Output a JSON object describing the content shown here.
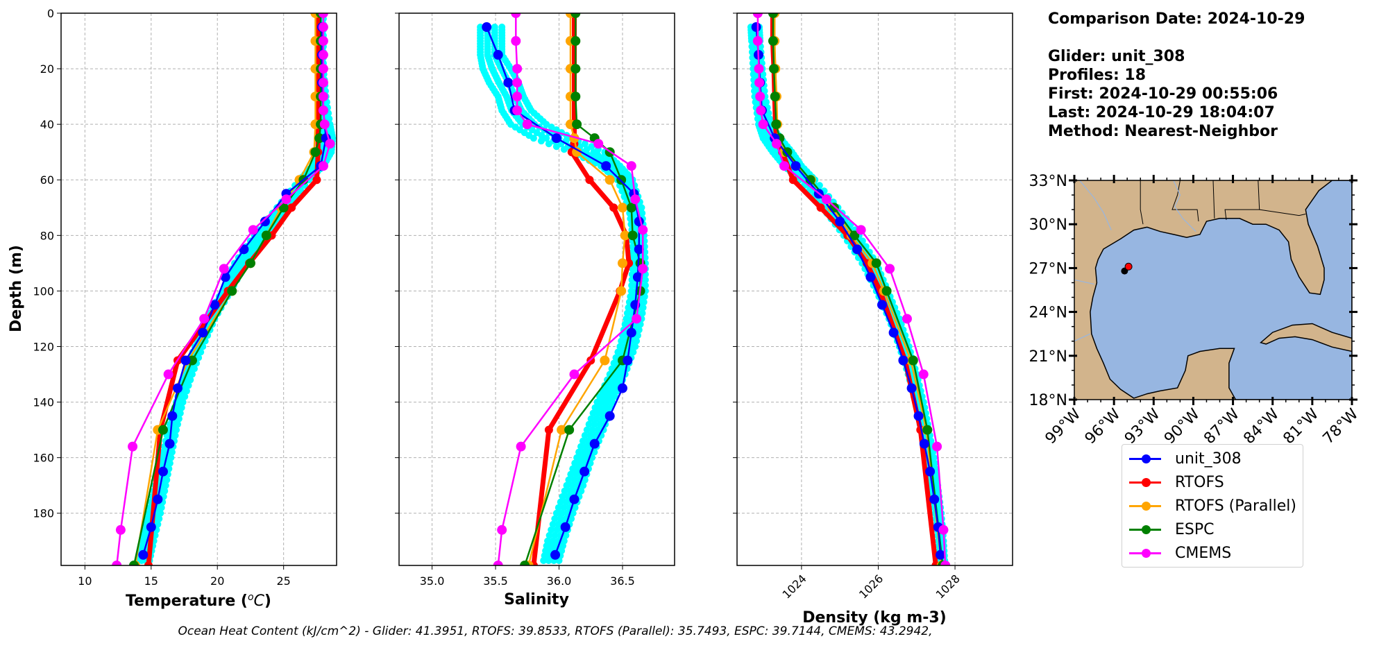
{
  "info": {
    "comparison_date": "Comparison Date: 2024-10-29",
    "glider": "Glider: unit_308",
    "profiles": "Profiles: 18",
    "first": "First: 2024-10-29 00:55:06",
    "last": "Last: 2024-10-29 18:04:07",
    "method": "Method: Nearest-Neighbor"
  },
  "caption": "Ocean Heat Content (kJ/cm^2) - Glider: 41.3951,  RTOFS: 39.8533,  RTOFS (Parallel): 35.7493,  ESPC: 39.7144,  CMEMS: 43.2942,",
  "legend": [
    {
      "label": "unit_308",
      "color": "#0000ff"
    },
    {
      "label": "RTOFS",
      "color": "#ff0000"
    },
    {
      "label": "RTOFS (Parallel)",
      "color": "#ffa500"
    },
    {
      "label": "ESPC",
      "color": "#008000"
    },
    {
      "label": "CMEMS",
      "color": "#ff00ff"
    }
  ],
  "colors": {
    "glider": "#0000ff",
    "glider_raw": "#00ffff",
    "rtofs": "#ff0000",
    "rtofs_parallel": "#ffa500",
    "espc": "#008000",
    "cmems": "#ff00ff",
    "land": "#d2b48c",
    "ocean": "#97b6e1",
    "grid": "#b0b0b0"
  },
  "chart_data": [
    {
      "type": "line",
      "id": "temperature",
      "xlabel": "Temperature (°C)",
      "ylabel": "Depth (m)",
      "xlim": [
        8.2,
        29.0
      ],
      "ylim": [
        198.8,
        0
      ],
      "xticks": [
        10,
        15,
        20,
        25
      ],
      "yticks": [
        0,
        20,
        40,
        60,
        80,
        100,
        120,
        140,
        160,
        180
      ],
      "grid": true,
      "series": [
        {
          "name": "unit_308",
          "key": "glider",
          "depth": [
            5,
            15,
            25,
            35,
            45,
            55,
            65,
            75,
            85,
            95,
            105,
            115,
            125,
            135,
            145,
            155,
            165,
            175,
            185,
            195
          ],
          "values": [
            27.9,
            27.9,
            27.9,
            28.0,
            28.2,
            27.8,
            25.2,
            23.6,
            22.0,
            20.6,
            19.8,
            18.9,
            17.6,
            17.0,
            16.6,
            16.4,
            15.9,
            15.5,
            15.0,
            14.4
          ]
        },
        {
          "name": "RTOFS",
          "key": "rtofs",
          "depth": [
            0,
            10,
            20,
            30,
            40,
            50,
            60,
            70,
            80,
            90,
            100,
            125,
            150,
            198.8
          ],
          "values": [
            27.6,
            27.6,
            27.6,
            27.6,
            27.6,
            27.6,
            27.5,
            25.6,
            24.1,
            22.4,
            20.8,
            17.0,
            15.7,
            14.8
          ]
        },
        {
          "name": "RTOFS (Parallel)",
          "key": "rtofs_parallel",
          "depth": [
            0,
            10,
            20,
            30,
            40,
            50,
            60,
            70,
            80,
            90,
            100,
            125,
            150,
            198.8
          ],
          "values": [
            27.4,
            27.4,
            27.4,
            27.4,
            27.4,
            27.3,
            26.2,
            24.8,
            23.7,
            22.5,
            21.1,
            17.8,
            15.5,
            13.8
          ]
        },
        {
          "name": "ESPC",
          "key": "espc",
          "depth": [
            0,
            10,
            20,
            30,
            40,
            45,
            50,
            60,
            70,
            80,
            90,
            100,
            125,
            150,
            198.8
          ],
          "values": [
            27.8,
            27.8,
            27.8,
            27.8,
            27.8,
            27.7,
            27.4,
            26.5,
            25.0,
            23.7,
            22.5,
            21.1,
            18.1,
            15.9,
            13.7
          ]
        },
        {
          "name": "CMEMS",
          "key": "cmems",
          "depth": [
            0,
            5,
            10,
            15,
            20,
            25,
            30,
            35,
            40,
            47,
            55,
            67,
            78,
            92,
            110,
            130,
            156,
            186,
            198.8
          ],
          "values": [
            28.0,
            28.0,
            28.0,
            28.0,
            28.0,
            28.0,
            28.0,
            28.0,
            28.1,
            28.5,
            28.0,
            25.2,
            22.7,
            20.5,
            19.0,
            16.3,
            13.6,
            12.7,
            12.4
          ]
        }
      ],
      "raw_band": {
        "name": "glider raw",
        "key": "glider_raw",
        "depth": [
          0,
          10,
          20,
          30,
          40,
          45,
          50,
          55,
          60,
          70,
          80,
          90,
          100,
          110,
          120,
          130,
          140,
          150,
          160,
          170,
          180,
          190,
          198.8
        ],
        "min": [
          27.7,
          27.7,
          27.7,
          27.7,
          27.8,
          27.8,
          27.6,
          27.2,
          26.2,
          24.5,
          22.8,
          21.3,
          20.4,
          19.1,
          18.3,
          17.5,
          16.9,
          16.3,
          15.8,
          15.3,
          14.8,
          14.3,
          13.9
        ],
        "max": [
          28.0,
          28.0,
          28.0,
          28.2,
          28.5,
          28.7,
          28.6,
          28.0,
          26.9,
          25.4,
          23.8,
          22.2,
          21.0,
          19.8,
          18.9,
          18.1,
          17.4,
          16.9,
          16.5,
          16.1,
          15.7,
          15.2,
          14.8
        ]
      }
    },
    {
      "type": "line",
      "id": "salinity",
      "xlabel": "Salinity",
      "ylabel": "",
      "xlim": [
        34.74,
        36.91
      ],
      "ylim": [
        198.8,
        0
      ],
      "xticks": [
        35.0,
        35.5,
        36.0,
        36.5
      ],
      "yticks": [
        0,
        20,
        40,
        60,
        80,
        100,
        120,
        140,
        160,
        180
      ],
      "grid": true,
      "series": [
        {
          "name": "unit_308",
          "key": "glider",
          "depth": [
            5,
            15,
            25,
            35,
            45,
            55,
            65,
            75,
            85,
            95,
            105,
            115,
            125,
            135,
            145,
            155,
            165,
            175,
            185,
            195
          ],
          "values": [
            35.43,
            35.52,
            35.6,
            35.65,
            35.98,
            36.37,
            36.59,
            36.63,
            36.63,
            36.62,
            36.6,
            36.57,
            36.54,
            36.5,
            36.4,
            36.28,
            36.2,
            36.12,
            36.05,
            35.97
          ]
        },
        {
          "name": "RTOFS",
          "key": "rtofs",
          "depth": [
            0,
            10,
            20,
            30,
            40,
            47,
            50,
            60,
            70,
            80,
            90,
            100,
            125,
            150,
            198.8
          ],
          "values": [
            36.12,
            36.12,
            36.12,
            36.12,
            36.12,
            36.12,
            36.1,
            36.24,
            36.43,
            36.53,
            36.55,
            36.48,
            36.25,
            35.92,
            35.8
          ]
        },
        {
          "name": "RTOFS (Parallel)",
          "key": "rtofs_parallel",
          "depth": [
            0,
            10,
            20,
            30,
            40,
            45,
            50,
            60,
            70,
            80,
            90,
            100,
            125,
            150,
            198.8
          ],
          "values": [
            36.09,
            36.09,
            36.09,
            36.09,
            36.09,
            36.12,
            36.14,
            36.4,
            36.5,
            36.52,
            36.5,
            36.49,
            36.36,
            36.02,
            35.76
          ]
        },
        {
          "name": "ESPC",
          "key": "espc",
          "depth": [
            0,
            10,
            20,
            30,
            40,
            45,
            50,
            60,
            70,
            80,
            90,
            100,
            125,
            150,
            198.8
          ],
          "values": [
            36.13,
            36.13,
            36.13,
            36.13,
            36.14,
            36.28,
            36.4,
            36.49,
            36.57,
            36.58,
            36.64,
            36.64,
            36.5,
            36.08,
            35.73
          ]
        },
        {
          "name": "CMEMS",
          "key": "cmems",
          "depth": [
            0,
            10,
            20,
            25,
            30,
            35,
            40,
            47,
            55,
            67,
            78,
            92,
            110,
            130,
            156,
            186,
            198.8
          ],
          "values": [
            35.66,
            35.66,
            35.67,
            35.67,
            35.67,
            35.67,
            35.75,
            36.31,
            36.57,
            36.6,
            36.66,
            36.66,
            36.61,
            36.12,
            35.7,
            35.55,
            35.52
          ]
        }
      ],
      "raw_band": {
        "name": "glider raw",
        "key": "glider_raw",
        "depth": [
          5,
          10,
          15,
          20,
          25,
          30,
          35,
          40,
          45,
          50,
          55,
          60,
          70,
          80,
          90,
          100,
          110,
          120,
          130,
          140,
          150,
          160,
          170,
          180,
          190,
          198.8
        ],
        "min": [
          35.38,
          35.38,
          35.38,
          35.4,
          35.45,
          35.52,
          35.55,
          35.62,
          35.8,
          36.1,
          36.33,
          36.46,
          36.55,
          36.58,
          36.58,
          36.57,
          36.53,
          36.48,
          36.4,
          36.3,
          36.22,
          36.14,
          36.06,
          35.98,
          35.91,
          35.87
        ],
        "max": [
          35.55,
          35.55,
          35.55,
          35.62,
          35.68,
          35.72,
          35.78,
          35.9,
          36.1,
          36.36,
          36.48,
          36.58,
          36.65,
          36.67,
          36.68,
          36.68,
          36.65,
          36.6,
          36.52,
          36.42,
          36.35,
          36.26,
          36.19,
          36.11,
          36.04,
          35.99
        ]
      }
    },
    {
      "type": "line",
      "id": "density",
      "xlabel": "Density (kg m-3)",
      "ylabel": "",
      "xlim": [
        1022.32,
        1029.5
      ],
      "ylim": [
        198.8,
        0
      ],
      "xticks": [
        1024,
        1026,
        1028
      ],
      "yticks": [
        0,
        20,
        40,
        60,
        80,
        100,
        120,
        140,
        160,
        180
      ],
      "grid": true,
      "series": [
        {
          "name": "unit_308",
          "key": "glider",
          "depth": [
            5,
            15,
            25,
            35,
            45,
            55,
            65,
            75,
            85,
            95,
            105,
            115,
            125,
            135,
            145,
            155,
            165,
            175,
            185,
            195
          ],
          "values": [
            1022.82,
            1022.88,
            1022.92,
            1022.97,
            1023.3,
            1023.85,
            1024.45,
            1025.0,
            1025.45,
            1025.8,
            1026.1,
            1026.4,
            1026.65,
            1026.87,
            1027.05,
            1027.2,
            1027.35,
            1027.46,
            1027.56,
            1027.62
          ]
        },
        {
          "name": "RTOFS",
          "key": "rtofs",
          "depth": [
            0,
            10,
            20,
            30,
            40,
            47,
            50,
            60,
            70,
            80,
            90,
            100,
            125,
            150,
            198.8
          ],
          "values": [
            1023.25,
            1023.25,
            1023.28,
            1023.3,
            1023.32,
            1023.35,
            1023.5,
            1023.78,
            1024.5,
            1025.2,
            1025.7,
            1026.05,
            1026.7,
            1027.1,
            1027.5
          ]
        },
        {
          "name": "RTOFS (Parallel)",
          "key": "rtofs_parallel",
          "depth": [
            0,
            10,
            20,
            30,
            40,
            45,
            50,
            60,
            70,
            80,
            90,
            100,
            125,
            150,
            198.8
          ],
          "values": [
            1023.3,
            1023.3,
            1023.32,
            1023.35,
            1023.37,
            1023.4,
            1023.55,
            1024.25,
            1024.8,
            1025.3,
            1025.85,
            1026.15,
            1026.85,
            1027.25,
            1027.65
          ]
        },
        {
          "name": "ESPC",
          "key": "espc",
          "depth": [
            0,
            10,
            20,
            30,
            40,
            45,
            50,
            60,
            70,
            80,
            90,
            100,
            125,
            150,
            198.8
          ],
          "values": [
            1023.26,
            1023.26,
            1023.28,
            1023.31,
            1023.34,
            1023.43,
            1023.63,
            1024.23,
            1024.85,
            1025.38,
            1025.95,
            1026.22,
            1026.91,
            1027.28,
            1027.68
          ]
        },
        {
          "name": "CMEMS",
          "key": "cmems",
          "depth": [
            0,
            10,
            20,
            25,
            30,
            35,
            40,
            47,
            55,
            67,
            78,
            92,
            110,
            130,
            156,
            186,
            198.8
          ],
          "values": [
            1022.86,
            1022.86,
            1022.89,
            1022.9,
            1022.92,
            1022.94,
            1023.0,
            1023.35,
            1023.55,
            1024.65,
            1025.55,
            1026.3,
            1026.75,
            1027.18,
            1027.53,
            1027.7,
            1027.75
          ]
        }
      ],
      "raw_band": {
        "name": "glider raw",
        "key": "glider_raw",
        "depth": [
          5,
          10,
          20,
          30,
          40,
          45,
          50,
          55,
          60,
          70,
          80,
          90,
          100,
          110,
          120,
          130,
          140,
          150,
          160,
          170,
          180,
          190,
          198.8
        ],
        "min": [
          1022.68,
          1022.7,
          1022.74,
          1022.78,
          1022.88,
          1023.0,
          1023.25,
          1023.55,
          1023.95,
          1024.55,
          1025.1,
          1025.58,
          1025.95,
          1026.28,
          1026.55,
          1026.78,
          1026.97,
          1027.12,
          1027.26,
          1027.38,
          1027.48,
          1027.57,
          1027.62
        ],
        "max": [
          1022.9,
          1022.92,
          1022.98,
          1023.05,
          1023.2,
          1023.45,
          1023.75,
          1024.0,
          1024.35,
          1024.95,
          1025.5,
          1025.95,
          1026.25,
          1026.55,
          1026.8,
          1027.0,
          1027.18,
          1027.32,
          1027.45,
          1027.55,
          1027.64,
          1027.7,
          1027.74
        ]
      }
    }
  ],
  "map": {
    "lon_range": [
      -99,
      -78
    ],
    "lat_range": [
      18,
      33
    ],
    "lat_ticks": [
      {
        "v": 33,
        "label": "33°N"
      },
      {
        "v": 30,
        "label": "30°N"
      },
      {
        "v": 27,
        "label": "27°N"
      },
      {
        "v": 24,
        "label": "24°N"
      },
      {
        "v": 21,
        "label": "21°N"
      },
      {
        "v": 18,
        "label": "18°N"
      }
    ],
    "lon_ticks": [
      {
        "v": -99,
        "label": "99°W"
      },
      {
        "v": -96,
        "label": "96°W"
      },
      {
        "v": -93,
        "label": "93°W"
      },
      {
        "v": -90,
        "label": "90°W"
      },
      {
        "v": -87,
        "label": "87°W"
      },
      {
        "v": -84,
        "label": "84°W"
      },
      {
        "v": -81,
        "label": "81°W"
      },
      {
        "v": -78,
        "label": "78°W"
      }
    ],
    "glider_track_start": [
      -95.2,
      26.8
    ],
    "glider_position": [
      -94.9,
      27.1
    ]
  }
}
